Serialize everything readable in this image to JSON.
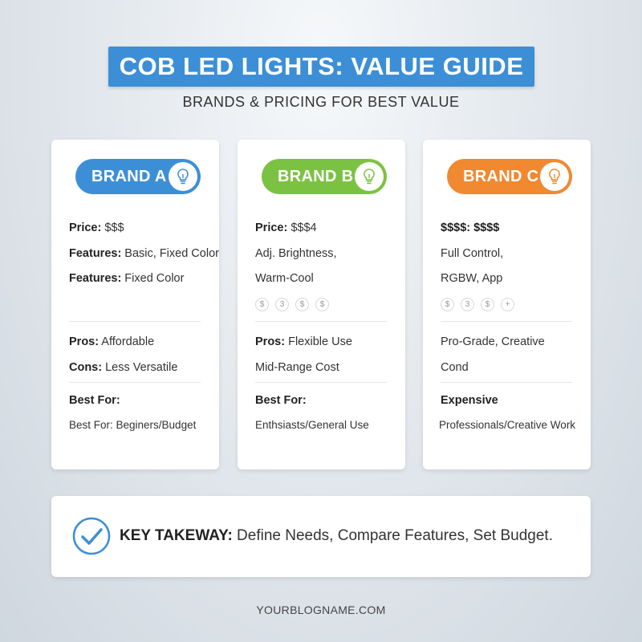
{
  "header": {
    "title": "COB LED LIGHTS: VALUE GUIDE",
    "subtitle": "BRANDS & PRICING FOR BEST VALUE"
  },
  "colors": {
    "title_blue": "#3c8fd6",
    "brand_a": "#3c8fd6",
    "brand_b": "#7cc242",
    "brand_c": "#f0892f",
    "check_blue": "#3c8fd6"
  },
  "cards": [
    {
      "brand": "BRAND A",
      "icon": "lightbulb-icon",
      "line1_label": "Price:",
      "line1_text": " $$$",
      "line2_label": "Features:",
      "line2_text": " Basic, Fixed Color",
      "line3_label": "Features:",
      "line3_text": " Fixed Color",
      "pros_label": "Pros:",
      "pros_text": " Affordable",
      "cons_label": "Cons:",
      "cons_text": " Less Versatile",
      "best_label": "Best For:",
      "best_text": "Best For: Beginers/Budget"
    },
    {
      "brand": "BRAND B",
      "icon": "lightbulb-icon",
      "line1_label": "Price:",
      "line1_text": " $$$4",
      "line2_text": "Adj. Brightness,",
      "line3_text": "Warm-Cool",
      "coins": [
        "$",
        "3",
        "$",
        "$"
      ],
      "pros_label": "Pros:",
      "pros_text": " Flexible Use",
      "cons_text": "Mid-Range Cost",
      "best_label": "Best For:",
      "best_text": "Enthsiasts/General Use"
    },
    {
      "brand": "BRAND C",
      "icon": "lightbulb-icon",
      "line1_text": "$$$$: $$$$",
      "line2_text": "Full Control,",
      "line3_text": "RGBW, App",
      "coins": [
        "$",
        "3",
        "$",
        "+"
      ],
      "pros_text": "Pro-Grade, Creative",
      "cons_text": "Cond",
      "best_label": "Expensive",
      "best_text": "Professionals/Creative Work"
    }
  ],
  "takeaway": {
    "icon": "checkmark-circle-icon",
    "label": "KEY TAKEWAY:",
    "text": " Define Needs, Compare Features, Set Budget."
  },
  "footer": {
    "text": "YOURBLOGNAME.COM"
  }
}
